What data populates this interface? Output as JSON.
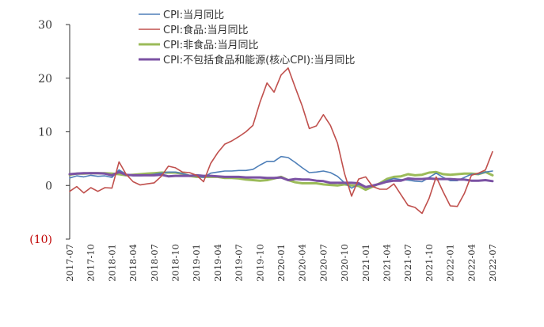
{
  "chart_data": {
    "type": "line",
    "title": "",
    "xlabel": "",
    "ylabel": "",
    "ylim": [
      -10,
      30
    ],
    "yticks": [
      {
        "value": 30,
        "label": "30"
      },
      {
        "value": 20,
        "label": "20"
      },
      {
        "value": 10,
        "label": "10"
      },
      {
        "value": 0,
        "label": "0"
      },
      {
        "value": -10,
        "label": "(10)"
      }
    ],
    "grid": false,
    "legend_position": "top-center",
    "x": [
      "2017-07",
      "2017-08",
      "2017-09",
      "2017-10",
      "2017-11",
      "2017-12",
      "2018-01",
      "2018-02",
      "2018-03",
      "2018-04",
      "2018-05",
      "2018-06",
      "2018-07",
      "2018-08",
      "2018-09",
      "2018-10",
      "2018-11",
      "2018-12",
      "2019-01",
      "2019-02",
      "2019-03",
      "2019-04",
      "2019-05",
      "2019-06",
      "2019-07",
      "2019-08",
      "2019-09",
      "2019-10",
      "2019-11",
      "2019-12",
      "2020-01",
      "2020-02",
      "2020-03",
      "2020-04",
      "2020-05",
      "2020-06",
      "2020-07",
      "2020-08",
      "2020-09",
      "2020-10",
      "2020-11",
      "2020-12",
      "2021-01",
      "2021-02",
      "2021-03",
      "2021-04",
      "2021-05",
      "2021-06",
      "2021-07",
      "2021-08",
      "2021-09",
      "2021-10",
      "2021-11",
      "2021-12",
      "2022-01",
      "2022-02",
      "2022-03",
      "2022-04",
      "2022-05",
      "2022-06",
      "2022-07"
    ],
    "xtick_labels": [
      "2017-07",
      "2017-10",
      "2018-01",
      "2018-04",
      "2018-07",
      "2018-10",
      "2019-01",
      "2019-04",
      "2019-07",
      "2019-10",
      "2020-01",
      "2020-04",
      "2020-07",
      "2020-10",
      "2021-01",
      "2021-04",
      "2021-07",
      "2021-10",
      "2022-01",
      "2022-04",
      "2022-07"
    ],
    "series": [
      {
        "name": "CPI:当月同比",
        "color": "#4e7fb8",
        "values": [
          1.4,
          1.8,
          1.6,
          1.9,
          1.7,
          1.8,
          1.5,
          2.9,
          2.1,
          1.8,
          1.8,
          1.9,
          2.1,
          2.3,
          2.5,
          2.5,
          2.2,
          1.9,
          1.7,
          1.5,
          2.3,
          2.5,
          2.7,
          2.7,
          2.8,
          2.8,
          3.0,
          3.8,
          4.5,
          4.5,
          5.4,
          5.2,
          4.3,
          3.3,
          2.4,
          2.5,
          2.7,
          2.4,
          1.7,
          0.5,
          -0.5,
          0.2,
          -0.3,
          -0.2,
          0.4,
          0.9,
          1.3,
          1.1,
          1.0,
          0.8,
          0.7,
          1.5,
          2.3,
          1.5,
          0.9,
          0.9,
          1.5,
          2.1,
          2.1,
          2.5,
          2.7
        ]
      },
      {
        "name": "CPI:食品:当月同比",
        "color": "#c0504d",
        "values": [
          -1.1,
          -0.2,
          -1.4,
          -0.4,
          -1.1,
          -0.4,
          -0.5,
          4.4,
          2.1,
          0.7,
          0.1,
          0.3,
          0.5,
          1.7,
          3.6,
          3.3,
          2.5,
          2.4,
          1.9,
          0.7,
          4.1,
          6.1,
          7.7,
          8.3,
          9.1,
          10.0,
          11.2,
          15.5,
          19.1,
          17.4,
          20.6,
          21.9,
          18.3,
          14.8,
          10.6,
          11.1,
          13.2,
          11.2,
          7.9,
          2.2,
          -2.0,
          1.2,
          1.6,
          -0.2,
          -0.7,
          -0.7,
          0.3,
          -1.7,
          -3.7,
          -4.1,
          -5.2,
          -2.4,
          1.6,
          -1.2,
          -3.8,
          -3.9,
          -1.5,
          1.9,
          2.3,
          2.9,
          6.3
        ]
      },
      {
        "name": "CPI:非食品:当月同比",
        "color": "#9bbb59",
        "values": [
          2.0,
          2.2,
          2.2,
          2.3,
          2.3,
          2.3,
          2.2,
          2.1,
          1.9,
          2.0,
          2.1,
          2.2,
          2.3,
          2.4,
          2.4,
          2.4,
          2.2,
          1.8,
          1.6,
          1.6,
          1.6,
          1.6,
          1.4,
          1.4,
          1.3,
          1.1,
          1.0,
          0.9,
          1.0,
          1.3,
          1.6,
          1.0,
          0.6,
          0.4,
          0.4,
          0.4,
          0.2,
          0.1,
          0.0,
          0.2,
          0.0,
          -0.1,
          -0.8,
          -0.2,
          0.4,
          1.2,
          1.6,
          1.7,
          2.1,
          1.9,
          2.0,
          2.4,
          2.5,
          2.1,
          2.0,
          2.1,
          2.2,
          2.2,
          2.1,
          2.5,
          1.9
        ]
      },
      {
        "name": "CPI:不包括食品和能源(核心CPI):当月同比",
        "color": "#7b52a3",
        "values": [
          2.1,
          2.2,
          2.3,
          2.3,
          2.3,
          2.2,
          1.9,
          2.5,
          2.0,
          1.9,
          1.9,
          1.9,
          1.9,
          2.0,
          1.7,
          1.8,
          1.8,
          1.8,
          1.9,
          1.8,
          1.8,
          1.7,
          1.6,
          1.6,
          1.6,
          1.5,
          1.5,
          1.5,
          1.4,
          1.4,
          1.5,
          1.0,
          1.2,
          1.1,
          1.1,
          0.9,
          0.8,
          0.5,
          0.5,
          0.5,
          0.5,
          0.4,
          -0.3,
          0.0,
          0.3,
          0.7,
          0.9,
          0.9,
          1.3,
          1.2,
          1.2,
          1.3,
          1.2,
          1.2,
          1.2,
          1.1,
          1.1,
          0.9,
          0.9,
          1.0,
          0.8
        ]
      }
    ]
  }
}
